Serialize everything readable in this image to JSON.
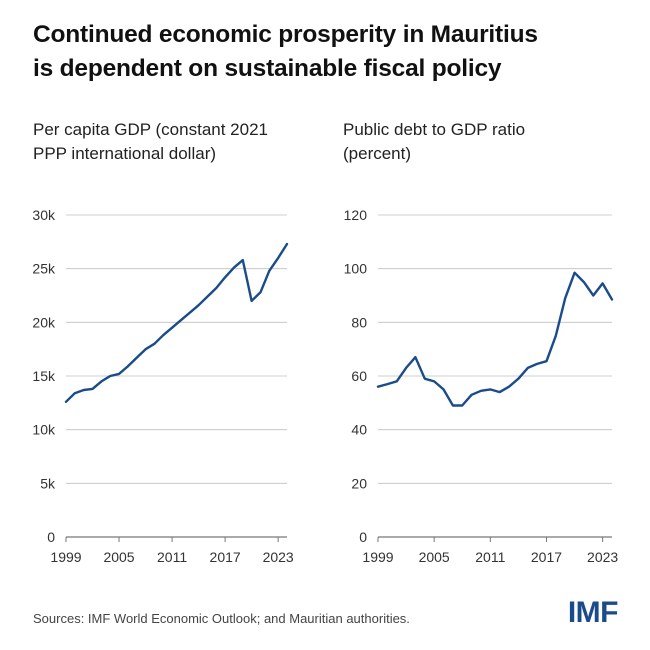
{
  "title": {
    "line1": "Continued economic prosperity in Mauritius",
    "line2": "is dependent on sustainable fiscal policy"
  },
  "colors": {
    "line": "#1a4c8b",
    "axis": "#999999",
    "text": "#111111"
  },
  "chart_data": [
    {
      "type": "line",
      "subtitle_line1": "Per capita GDP (constant 2021",
      "subtitle_line2": "PPP international dollar)",
      "x": [
        1999,
        2000,
        2001,
        2002,
        2003,
        2004,
        2005,
        2006,
        2007,
        2008,
        2009,
        2010,
        2011,
        2012,
        2013,
        2014,
        2015,
        2016,
        2017,
        2018,
        2019,
        2020,
        2021,
        2022,
        2023,
        2024
      ],
      "values": [
        12600,
        13400,
        13700,
        13800,
        14500,
        15000,
        15200,
        15900,
        16700,
        17500,
        18000,
        18800,
        19500,
        20200,
        20900,
        21600,
        22400,
        23200,
        24200,
        25100,
        25800,
        22000,
        22800,
        24800,
        26000,
        27300
      ],
      "xlim": [
        1999,
        2024
      ],
      "ylim": [
        0,
        30000
      ],
      "yticks": [
        0,
        5000,
        10000,
        15000,
        20000,
        25000,
        30000
      ],
      "yticklabels": [
        "0",
        "5k",
        "10k",
        "15k",
        "20k",
        "25k",
        "30k"
      ],
      "xticks": [
        1999,
        2005,
        2011,
        2017,
        2023
      ],
      "xticklabels": [
        "1999",
        "2005",
        "2011",
        "2017",
        "2023"
      ]
    },
    {
      "type": "line",
      "subtitle_line1": "Public debt to GDP ratio",
      "subtitle_line2": "(percent)",
      "x": [
        1999,
        2000,
        2001,
        2002,
        2003,
        2004,
        2005,
        2006,
        2007,
        2008,
        2009,
        2010,
        2011,
        2012,
        2013,
        2014,
        2015,
        2016,
        2017,
        2018,
        2019,
        2020,
        2021,
        2022,
        2023,
        2024
      ],
      "values": [
        56,
        57,
        58,
        63,
        67,
        59,
        58,
        55,
        49,
        49,
        53,
        54.5,
        55,
        54,
        56,
        59,
        63,
        64.5,
        65.5,
        75,
        89,
        98.5,
        95,
        90,
        94.5,
        88.5
      ],
      "xlim": [
        1999,
        2024
      ],
      "ylim": [
        0,
        120
      ],
      "yticks": [
        0,
        20,
        40,
        60,
        80,
        100,
        120
      ],
      "yticklabels": [
        "0",
        "20",
        "40",
        "60",
        "80",
        "100",
        "120"
      ],
      "xticks": [
        1999,
        2005,
        2011,
        2017,
        2023
      ],
      "xticklabels": [
        "1999",
        "2005",
        "2011",
        "2017",
        "2023"
      ]
    }
  ],
  "footer": {
    "sources": "Sources: IMF World Economic Outlook; and Mauritian authorities."
  },
  "logo": {
    "text": "IMF"
  }
}
